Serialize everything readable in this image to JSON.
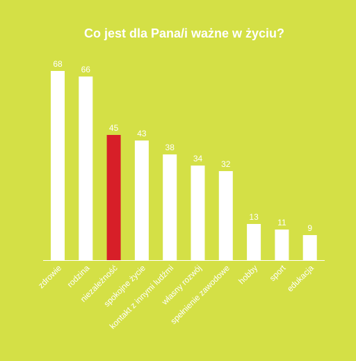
{
  "colors": {
    "background": "#d4e046",
    "bar": "#ffffff",
    "highlight": "#d71f28",
    "text": "#ffffff",
    "axis": "#ffffff"
  },
  "chart_data": {
    "type": "bar",
    "title": "Co jest dla Pana/i ważne w życiu?",
    "categories": [
      "zdrowie",
      "rodzina",
      "niezależność",
      "spokojne życie",
      "kontakt z innymi ludźmi",
      "własny rozwój",
      "spełnienie zawodowe",
      "hobby",
      "sport",
      "edukacja"
    ],
    "values": [
      68,
      66,
      45,
      43,
      38,
      34,
      32,
      13,
      11,
      9
    ],
    "highlight_category": "niezależność",
    "ylim": [
      0,
      68
    ],
    "grid": false,
    "legend": "none"
  }
}
